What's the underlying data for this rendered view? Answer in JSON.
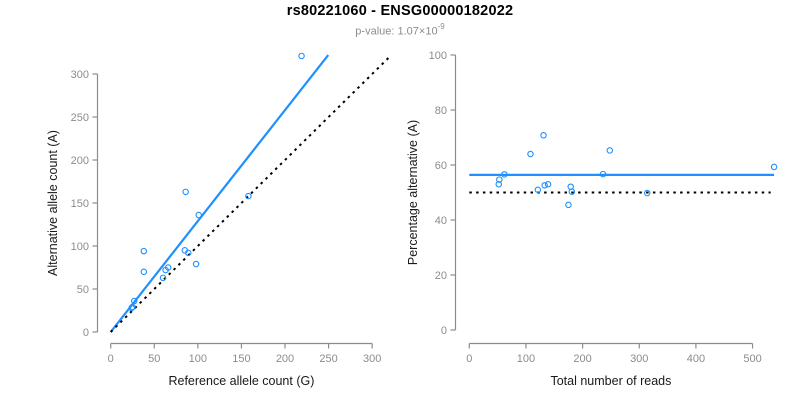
{
  "header": {
    "title": "rs80221060 - ENSG00000182022",
    "subtitle_label": "p-value:",
    "subtitle_value": "1.07×10",
    "subtitle_exponent": "-9"
  },
  "colors": {
    "accent": "#1E90FF",
    "dotted_line": "#000000",
    "axis": "#8c8c8c",
    "tick_label": "#8c8c8c",
    "axis_title": "#1a1a1a",
    "subtitle": "#8c8c8c"
  },
  "chart_data": [
    {
      "id": "allele-counts",
      "type": "scatter",
      "xlabel": "Reference allele count (G)",
      "ylabel": "Alternative allele count (A)",
      "xticks": [
        0,
        50,
        100,
        150,
        200,
        250,
        300
      ],
      "yticks": [
        0,
        50,
        100,
        150,
        200,
        250,
        300
      ],
      "xlim": [
        0,
        316
      ],
      "ylim": [
        0,
        322
      ],
      "grid": false,
      "points": [
        [
          24,
          28
        ],
        [
          25,
          29
        ],
        [
          27,
          36
        ],
        [
          38,
          70
        ],
        [
          38,
          94
        ],
        [
          60,
          63
        ],
        [
          63,
          72
        ],
        [
          66,
          75
        ],
        [
          85,
          95
        ],
        [
          89,
          92
        ],
        [
          86,
          163
        ],
        [
          98,
          79
        ],
        [
          101,
          136
        ],
        [
          158,
          158
        ],
        [
          219,
          321
        ]
      ],
      "lines": [
        {
          "name": "regression-line",
          "style": "solid",
          "color": "#1E90FF",
          "slope": 1.29,
          "intercept": 0,
          "x_range": [
            0,
            249.6
          ]
        },
        {
          "name": "identity-line",
          "style": "dotted",
          "color": "#000000",
          "slope": 1,
          "intercept": 0,
          "x_range": [
            0,
            319.5
          ]
        }
      ]
    },
    {
      "id": "percentage-alternative",
      "type": "scatter",
      "xlabel": "Total number of reads",
      "ylabel": "Percentage alternative (A)",
      "xticks": [
        0,
        100,
        200,
        300,
        400,
        500
      ],
      "yticks": [
        0,
        20,
        40,
        60,
        80,
        100
      ],
      "xlim": [
        0,
        545
      ],
      "ylim": [
        0,
        100
      ],
      "grid": false,
      "points": [
        [
          52,
          53.0
        ],
        [
          53,
          54.7
        ],
        [
          62,
          56.6
        ],
        [
          108,
          64.0
        ],
        [
          121,
          51.0
        ],
        [
          131,
          70.8
        ],
        [
          133,
          52.6
        ],
        [
          139,
          53.0
        ],
        [
          175,
          45.5
        ],
        [
          179,
          52.1
        ],
        [
          181,
          50.3
        ],
        [
          236,
          56.7
        ],
        [
          248,
          65.3
        ],
        [
          314,
          49.8
        ],
        [
          538,
          59.3
        ]
      ],
      "lines": [
        {
          "name": "mean-line",
          "style": "solid",
          "color": "#1E90FF",
          "y": 56.4,
          "x_range": [
            0,
            538
          ]
        },
        {
          "name": "reference-line",
          "style": "dotted",
          "color": "#000000",
          "y": 50,
          "x_range": [
            0,
            532
          ]
        }
      ]
    }
  ]
}
